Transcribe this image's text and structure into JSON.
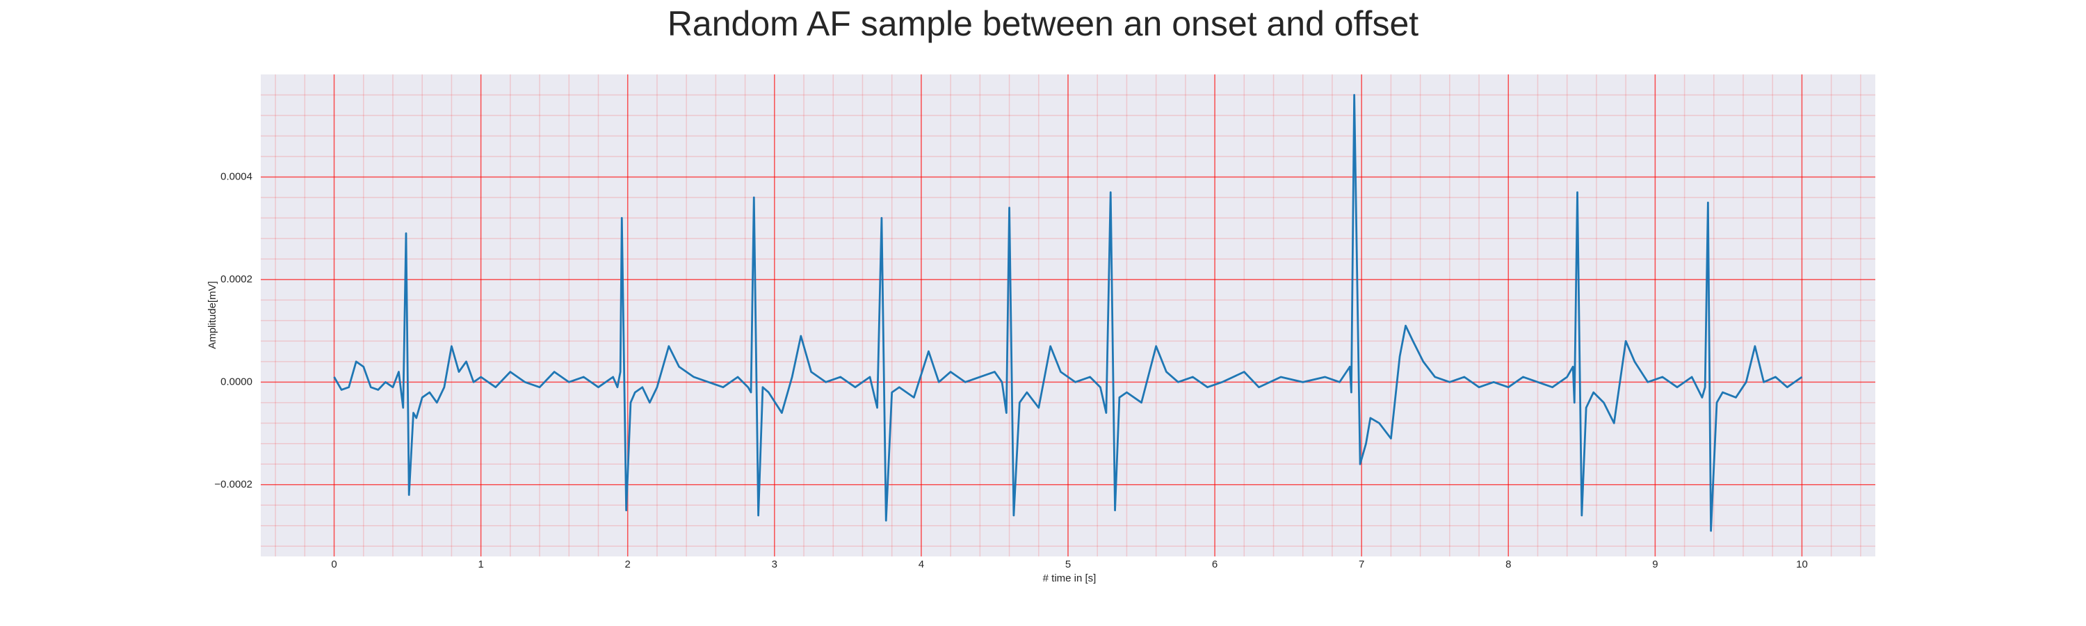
{
  "chart_data": {
    "type": "line",
    "title": "Random AF sample between an onset and offset",
    "x_label": "# time in [s]",
    "y_label": "Amplitude[mV]",
    "xlim": [
      -0.5,
      10.5
    ],
    "ylim": [
      -0.00034,
      0.0006
    ],
    "xticks": [
      0,
      1,
      2,
      3,
      4,
      5,
      6,
      7,
      8,
      9,
      10
    ],
    "yticks": [
      {
        "value": -0.0002,
        "label": "−0.0002"
      },
      {
        "value": 0,
        "label": "0.0000"
      },
      0.0002,
      0.0004
    ],
    "xminorticks": [
      -0.4,
      -0.2,
      0,
      0.2,
      0.4,
      0.6,
      0.8,
      1,
      1.2,
      1.4,
      1.6,
      1.8,
      2,
      2.2,
      2.4,
      2.6,
      2.8,
      3,
      3.2,
      3.4,
      3.6,
      3.8,
      4,
      4.2,
      4.4,
      4.6,
      4.8,
      5,
      5.2,
      5.4,
      5.6,
      5.8,
      6,
      6.2,
      6.4,
      6.6,
      6.8,
      7,
      7.2,
      7.4,
      7.6,
      7.8,
      8,
      8.2,
      8.4,
      8.6,
      8.8,
      9,
      9.2,
      9.4,
      9.6,
      9.8,
      10,
      10.2,
      10.4
    ],
    "yminorticks": [
      -0.00032,
      -0.00028,
      -0.00024,
      -0.0002,
      -0.00016,
      -0.00012,
      -8e-05,
      -4e-05,
      0,
      4e-05,
      8e-05,
      0.00012,
      0.00016,
      0.0002,
      0.00024,
      0.00028,
      0.00032,
      0.00036,
      0.0004,
      0.00044,
      0.00048,
      0.00052,
      0.00056
    ],
    "grid": true,
    "background": "#eaeaf2",
    "grid_color": "#ff0000",
    "series": [
      {
        "name": "AF",
        "color": "#1f77b4",
        "x": [
          0,
          0.05,
          0.1,
          0.15,
          0.2,
          0.25,
          0.3,
          0.35,
          0.4,
          0.44,
          0.47,
          0.49,
          0.51,
          0.54,
          0.56,
          0.6,
          0.65,
          0.7,
          0.75,
          0.8,
          0.85,
          0.9,
          0.95,
          1,
          1.1,
          1.2,
          1.3,
          1.4,
          1.5,
          1.6,
          1.7,
          1.8,
          1.9,
          1.93,
          1.95,
          1.96,
          1.99,
          2.02,
          2.05,
          2.1,
          2.15,
          2.2,
          2.28,
          2.35,
          2.45,
          2.55,
          2.65,
          2.75,
          2.82,
          2.84,
          2.86,
          2.89,
          2.92,
          2.96,
          3.05,
          3.12,
          3.18,
          3.25,
          3.35,
          3.45,
          3.55,
          3.65,
          3.7,
          3.73,
          3.76,
          3.8,
          3.85,
          3.95,
          4.05,
          4.12,
          4.2,
          4.3,
          4.4,
          4.5,
          4.55,
          4.58,
          4.6,
          4.63,
          4.67,
          4.72,
          4.8,
          4.88,
          4.95,
          5.05,
          5.15,
          5.22,
          5.26,
          5.29,
          5.32,
          5.35,
          5.4,
          5.5,
          5.6,
          5.67,
          5.75,
          5.85,
          5.95,
          6.05,
          6.2,
          6.3,
          6.45,
          6.6,
          6.75,
          6.85,
          6.92,
          6.93,
          6.95,
          6.99,
          7.03,
          7.06,
          7.12,
          7.2,
          7.26,
          7.3,
          7.35,
          7.42,
          7.5,
          7.6,
          7.7,
          7.8,
          7.9,
          8,
          8.1,
          8.2,
          8.3,
          8.4,
          8.44,
          8.45,
          8.47,
          8.5,
          8.53,
          8.58,
          8.65,
          8.72,
          8.8,
          8.86,
          8.95,
          9.05,
          9.15,
          9.25,
          9.32,
          9.34,
          9.36,
          9.38,
          9.42,
          9.46,
          9.55,
          9.62,
          9.68,
          9.74,
          9.82,
          9.9,
          10
        ],
        "values": [
          1e-05,
          -1.5e-05,
          -1e-05,
          4e-05,
          3e-05,
          -1e-05,
          -1.5e-05,
          0,
          -1e-05,
          2e-05,
          -5e-05,
          0.00029,
          -0.00022,
          -6e-05,
          -7e-05,
          -3e-05,
          -2e-05,
          -4e-05,
          -1e-05,
          7e-05,
          2e-05,
          4e-05,
          0,
          1e-05,
          -1e-05,
          2e-05,
          0,
          -1e-05,
          2e-05,
          0,
          1e-05,
          -1e-05,
          1e-05,
          -1e-05,
          2e-05,
          0.00032,
          -0.00025,
          -4e-05,
          -2e-05,
          -1e-05,
          -4e-05,
          -1e-05,
          7e-05,
          3e-05,
          1e-05,
          0,
          -1e-05,
          1e-05,
          -1e-05,
          -2e-05,
          0.00036,
          -0.00026,
          -1e-05,
          -2e-05,
          -6e-05,
          1e-05,
          9e-05,
          2e-05,
          0,
          1e-05,
          -1e-05,
          1e-05,
          -5e-05,
          0.00032,
          -0.00027,
          -2e-05,
          -1e-05,
          -3e-05,
          6e-05,
          0,
          2e-05,
          0,
          1e-05,
          2e-05,
          0,
          -6e-05,
          0.00034,
          -0.00026,
          -4e-05,
          -2e-05,
          -5e-05,
          7e-05,
          2e-05,
          0,
          1e-05,
          -1e-05,
          -6e-05,
          0.00037,
          -0.00025,
          -3e-05,
          -2e-05,
          -4e-05,
          7e-05,
          2e-05,
          0,
          1e-05,
          -1e-05,
          0,
          2e-05,
          -1e-05,
          1e-05,
          0,
          1e-05,
          0,
          3e-05,
          -2e-05,
          0.00056,
          -0.00016,
          -0.00012,
          -7e-05,
          -8e-05,
          -0.00011,
          5e-05,
          0.00011,
          8e-05,
          4e-05,
          1e-05,
          0,
          1e-05,
          -1e-05,
          0,
          -1e-05,
          1e-05,
          0,
          -1e-05,
          1e-05,
          3e-05,
          -4e-05,
          0.00037,
          -0.00026,
          -5e-05,
          -2e-05,
          -4e-05,
          -8e-05,
          8e-05,
          4e-05,
          0,
          1e-05,
          -1e-05,
          1e-05,
          -3e-05,
          -1e-05,
          0.00035,
          -0.00029,
          -4e-05,
          -2e-05,
          -3e-05,
          0,
          7e-05,
          0,
          1e-05,
          -1e-05,
          1e-05
        ]
      }
    ]
  }
}
